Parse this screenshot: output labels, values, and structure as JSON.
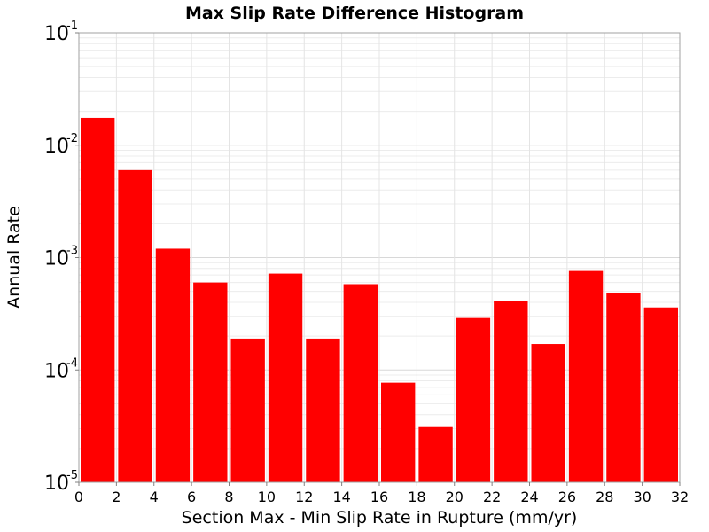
{
  "chart_data": {
    "type": "bar",
    "title": "Max Slip Rate Difference Histogram",
    "xlabel": "Section Max - Min Slip Rate in Rupture (mm/yr)",
    "ylabel": "Annual Rate",
    "x_ticks": [
      "0",
      "2",
      "4",
      "6",
      "8",
      "10",
      "12",
      "14",
      "16",
      "18",
      "20",
      "22",
      "24",
      "26",
      "28",
      "30",
      "32"
    ],
    "y_ticks": [
      {
        "base": "10",
        "exp": "-5"
      },
      {
        "base": "10",
        "exp": "-4"
      },
      {
        "base": "10",
        "exp": "-3"
      },
      {
        "base": "10",
        "exp": "-2"
      },
      {
        "base": "10",
        "exp": "-1"
      }
    ],
    "xlim": [
      0,
      32
    ],
    "ylim": [
      1e-05,
      0.1
    ],
    "yscale": "log",
    "grid": true,
    "bin_width": 2,
    "bar_color": "#ff0000",
    "bins": [
      {
        "x": 1,
        "value": 0.0175
      },
      {
        "x": 3,
        "value": 0.006
      },
      {
        "x": 5,
        "value": 0.0012
      },
      {
        "x": 7,
        "value": 0.0006
      },
      {
        "x": 9,
        "value": 0.00019
      },
      {
        "x": 11,
        "value": 0.00072
      },
      {
        "x": 13,
        "value": 0.00019
      },
      {
        "x": 15,
        "value": 0.00058
      },
      {
        "x": 17,
        "value": 7.7e-05
      },
      {
        "x": 19,
        "value": 3.1e-05
      },
      {
        "x": 21,
        "value": 0.00029
      },
      {
        "x": 23,
        "value": 0.00041
      },
      {
        "x": 25,
        "value": 0.00017
      },
      {
        "x": 27,
        "value": 0.00076
      },
      {
        "x": 29,
        "value": 0.00048
      },
      {
        "x": 31,
        "value": 0.00036
      }
    ]
  }
}
